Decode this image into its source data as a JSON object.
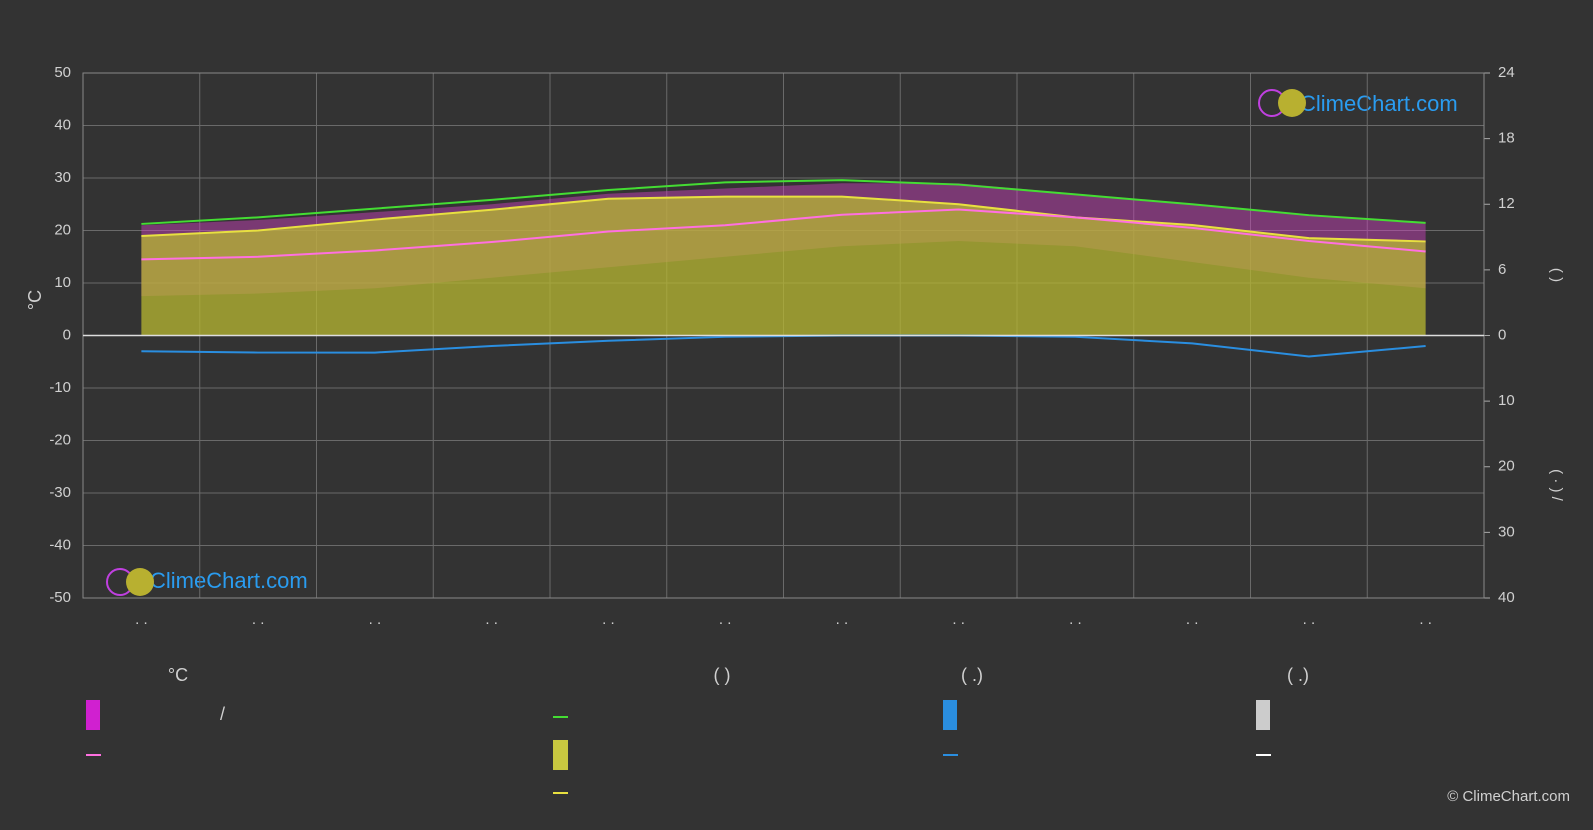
{
  "chart_data": {
    "type": "line",
    "y_label": "°C",
    "y2_label": "(      )",
    "y3_label": "(  ·  )    /",
    "categories": [
      ". .",
      ". .",
      ". .",
      ". .",
      ". .",
      ". .",
      ". .",
      ". .",
      ". .",
      ". .",
      ". .",
      ". ."
    ],
    "ylim": [
      -50,
      50
    ],
    "yticks": [
      -50,
      -40,
      -30,
      -20,
      -10,
      0,
      10,
      20,
      30,
      40,
      50
    ],
    "y2lim": [
      0,
      24
    ],
    "y2ticks": [
      0,
      6,
      12,
      18,
      24
    ],
    "y3lim": [
      0,
      40
    ],
    "y3ticks": [
      10,
      20,
      30,
      40
    ],
    "grid": true,
    "temperature_band": {
      "color": "#d040c0",
      "max": [
        21,
        22,
        23.5,
        25,
        27,
        28,
        29,
        29,
        27,
        25,
        23,
        21.5
      ],
      "min": [
        7.5,
        8,
        9,
        11,
        13,
        15,
        17,
        18,
        17,
        14,
        11,
        9
      ]
    },
    "series": [
      {
        "color": "#b8b832",
        "kind": "area",
        "axis": "y2",
        "values": [
          9.1,
          9.6,
          10.6,
          11.5,
          12.5,
          12.7,
          12.7,
          12.0,
          10.8,
          10.1,
          8.9,
          8.6
        ]
      },
      {
        "color": "#44dd33",
        "axis": "y2",
        "values": [
          10.2,
          10.8,
          11.6,
          12.4,
          13.3,
          14.0,
          14.2,
          13.8,
          12.9,
          12.0,
          11.0,
          10.3
        ]
      },
      {
        "color": "#e8e040",
        "axis": "y2",
        "values": [
          9.1,
          9.6,
          10.6,
          11.5,
          12.5,
          12.7,
          12.7,
          12.0,
          10.8,
          10.1,
          8.9,
          8.6
        ]
      },
      {
        "color": "#ff70e0",
        "values": [
          14.5,
          15,
          16.2,
          17.8,
          19.8,
          21,
          23,
          24,
          22.5,
          20.5,
          18,
          16
        ]
      },
      {
        "color": "#2a8ee0",
        "axis": "y3",
        "values": [
          2.4,
          2.6,
          2.6,
          1.6,
          0.8,
          0.2,
          0,
          0,
          0.2,
          1.2,
          3.2,
          1.6
        ]
      }
    ],
    "legend": {
      "headers": [
        "°C",
        "(          )",
        "(   .)",
        "(   .)"
      ],
      "items": [
        "/"
      ]
    },
    "watermarks": [
      "ClimeChart.com",
      "ClimeChart.com"
    ],
    "copyright": "© ClimeChart.com"
  }
}
